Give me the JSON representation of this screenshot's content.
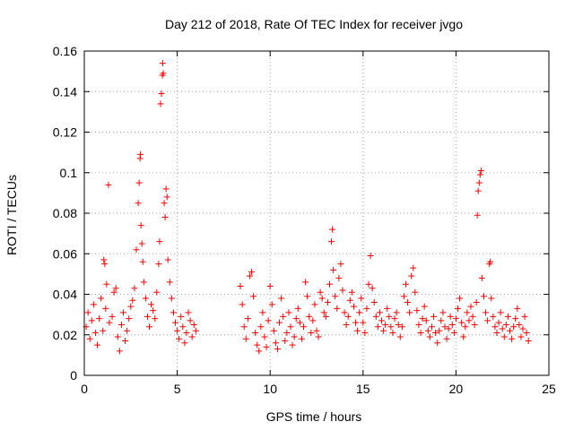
{
  "chart_data": {
    "type": "scatter",
    "title": "Day 212 of 2018, Rate Of TEC Index for receiver jvgo",
    "xlabel": "GPS time / hours",
    "ylabel": "ROTI / TECUs",
    "xlim": [
      0,
      25
    ],
    "ylim": [
      0,
      0.16
    ],
    "x_ticks": [
      0,
      5,
      10,
      15,
      20,
      25
    ],
    "x_tick_labels": [
      "0",
      "5",
      "10",
      "15",
      "20",
      "25"
    ],
    "y_ticks": [
      0,
      0.02,
      0.04,
      0.06,
      0.08,
      0.1,
      0.12,
      0.14,
      0.16
    ],
    "y_tick_labels": [
      "0",
      "0.02",
      "0.04",
      "0.06",
      "0.08",
      "0.1",
      "0.12",
      "0.14",
      "0.16"
    ],
    "grid": true,
    "marker": "+",
    "color": "#ff0000",
    "data_gap_hours": [
      6.0,
      8.3
    ],
    "series": [
      {
        "name": "ROTI",
        "points": [
          [
            0.1,
            0.024
          ],
          [
            0.2,
            0.031
          ],
          [
            0.3,
            0.018
          ],
          [
            0.4,
            0.027
          ],
          [
            0.5,
            0.035
          ],
          [
            0.6,
            0.021
          ],
          [
            0.7,
            0.015
          ],
          [
            0.8,
            0.028
          ],
          [
            0.9,
            0.038
          ],
          [
            1.0,
            0.022
          ],
          [
            1.05,
            0.057
          ],
          [
            1.1,
            0.055
          ],
          [
            1.15,
            0.033
          ],
          [
            1.2,
            0.045
          ],
          [
            1.3,
            0.094
          ],
          [
            1.35,
            0.026
          ],
          [
            1.5,
            0.029
          ],
          [
            1.6,
            0.041
          ],
          [
            1.7,
            0.043
          ],
          [
            1.8,
            0.019
          ],
          [
            1.9,
            0.012
          ],
          [
            2.0,
            0.025
          ],
          [
            2.1,
            0.031
          ],
          [
            2.2,
            0.017
          ],
          [
            2.3,
            0.022
          ],
          [
            2.4,
            0.028
          ],
          [
            2.5,
            0.034
          ],
          [
            2.6,
            0.037
          ],
          [
            2.7,
            0.043
          ],
          [
            2.8,
            0.062
          ],
          [
            2.9,
            0.085
          ],
          [
            2.95,
            0.095
          ],
          [
            3.0,
            0.107
          ],
          [
            3.02,
            0.109
          ],
          [
            3.05,
            0.074
          ],
          [
            3.1,
            0.065
          ],
          [
            3.15,
            0.056
          ],
          [
            3.2,
            0.046
          ],
          [
            3.3,
            0.038
          ],
          [
            3.4,
            0.029
          ],
          [
            3.5,
            0.024
          ],
          [
            3.6,
            0.035
          ],
          [
            3.7,
            0.032
          ],
          [
            3.8,
            0.028
          ],
          [
            3.9,
            0.041
          ],
          [
            4.0,
            0.055
          ],
          [
            4.05,
            0.066
          ],
          [
            4.1,
            0.134
          ],
          [
            4.15,
            0.139
          ],
          [
            4.2,
            0.148
          ],
          [
            4.22,
            0.154
          ],
          [
            4.25,
            0.149
          ],
          [
            4.3,
            0.085
          ],
          [
            4.35,
            0.078
          ],
          [
            4.4,
            0.092
          ],
          [
            4.45,
            0.088
          ],
          [
            4.5,
            0.057
          ],
          [
            4.6,
            0.046
          ],
          [
            4.7,
            0.038
          ],
          [
            4.8,
            0.031
          ],
          [
            4.9,
            0.026
          ],
          [
            5.0,
            0.022
          ],
          [
            5.1,
            0.018
          ],
          [
            5.2,
            0.029
          ],
          [
            5.3,
            0.024
          ],
          [
            5.4,
            0.016
          ],
          [
            5.5,
            0.021
          ],
          [
            5.6,
            0.031
          ],
          [
            5.7,
            0.027
          ],
          [
            5.8,
            0.019
          ],
          [
            5.9,
            0.025
          ],
          [
            6.0,
            0.022
          ],
          [
            8.4,
            0.044
          ],
          [
            8.5,
            0.035
          ],
          [
            8.6,
            0.024
          ],
          [
            8.7,
            0.018
          ],
          [
            8.8,
            0.028
          ],
          [
            8.9,
            0.049
          ],
          [
            9.0,
            0.051
          ],
          [
            9.1,
            0.039
          ],
          [
            9.2,
            0.021
          ],
          [
            9.3,
            0.015
          ],
          [
            9.4,
            0.012
          ],
          [
            9.5,
            0.024
          ],
          [
            9.6,
            0.031
          ],
          [
            9.7,
            0.019
          ],
          [
            9.8,
            0.014
          ],
          [
            9.9,
            0.027
          ],
          [
            10.0,
            0.044
          ],
          [
            10.1,
            0.035
          ],
          [
            10.2,
            0.022
          ],
          [
            10.3,
            0.016
          ],
          [
            10.4,
            0.013
          ],
          [
            10.5,
            0.026
          ],
          [
            10.6,
            0.038
          ],
          [
            10.7,
            0.029
          ],
          [
            10.8,
            0.017
          ],
          [
            10.9,
            0.021
          ],
          [
            11.0,
            0.031
          ],
          [
            11.1,
            0.024
          ],
          [
            11.2,
            0.015
          ],
          [
            11.3,
            0.019
          ],
          [
            11.4,
            0.028
          ],
          [
            11.5,
            0.033
          ],
          [
            11.6,
            0.026
          ],
          [
            11.7,
            0.018
          ],
          [
            11.8,
            0.024
          ],
          [
            11.9,
            0.046
          ],
          [
            12.0,
            0.039
          ],
          [
            12.1,
            0.029
          ],
          [
            12.2,
            0.021
          ],
          [
            12.3,
            0.027
          ],
          [
            12.4,
            0.035
          ],
          [
            12.5,
            0.022
          ],
          [
            12.6,
            0.019
          ],
          [
            12.7,
            0.041
          ],
          [
            12.8,
            0.038
          ],
          [
            12.9,
            0.031
          ],
          [
            13.0,
            0.029
          ],
          [
            13.1,
            0.036
          ],
          [
            13.2,
            0.045
          ],
          [
            13.3,
            0.066
          ],
          [
            13.35,
            0.072
          ],
          [
            13.4,
            0.052
          ],
          [
            13.5,
            0.039
          ],
          [
            13.6,
            0.033
          ],
          [
            13.7,
            0.048
          ],
          [
            13.8,
            0.055
          ],
          [
            13.9,
            0.042
          ],
          [
            14.0,
            0.031
          ],
          [
            14.1,
            0.025
          ],
          [
            14.2,
            0.029
          ],
          [
            14.3,
            0.037
          ],
          [
            14.4,
            0.041
          ],
          [
            14.5,
            0.034
          ],
          [
            14.6,
            0.026
          ],
          [
            14.7,
            0.022
          ],
          [
            14.8,
            0.031
          ],
          [
            14.9,
            0.038
          ],
          [
            15.0,
            0.026
          ],
          [
            15.1,
            0.021
          ],
          [
            15.2,
            0.033
          ],
          [
            15.3,
            0.045
          ],
          [
            15.4,
            0.059
          ],
          [
            15.5,
            0.043
          ],
          [
            15.6,
            0.036
          ],
          [
            15.7,
            0.029
          ],
          [
            15.8,
            0.024
          ],
          [
            15.9,
            0.031
          ],
          [
            16.0,
            0.027
          ],
          [
            16.1,
            0.022
          ],
          [
            16.2,
            0.025
          ],
          [
            16.3,
            0.033
          ],
          [
            16.4,
            0.029
          ],
          [
            16.5,
            0.024
          ],
          [
            16.6,
            0.021
          ],
          [
            16.7,
            0.028
          ],
          [
            16.8,
            0.031
          ],
          [
            16.9,
            0.025
          ],
          [
            17.0,
            0.019
          ],
          [
            17.1,
            0.024
          ],
          [
            17.2,
            0.039
          ],
          [
            17.3,
            0.045
          ],
          [
            17.4,
            0.036
          ],
          [
            17.5,
            0.031
          ],
          [
            17.6,
            0.049
          ],
          [
            17.7,
            0.053
          ],
          [
            17.8,
            0.041
          ],
          [
            17.9,
            0.032
          ],
          [
            18.0,
            0.025
          ],
          [
            18.1,
            0.021
          ],
          [
            18.2,
            0.028
          ],
          [
            18.3,
            0.034
          ],
          [
            18.4,
            0.027
          ],
          [
            18.5,
            0.022
          ],
          [
            18.6,
            0.019
          ],
          [
            18.7,
            0.024
          ],
          [
            18.8,
            0.029
          ],
          [
            18.9,
            0.021
          ],
          [
            19.0,
            0.016
          ],
          [
            19.1,
            0.022
          ],
          [
            19.2,
            0.027
          ],
          [
            19.3,
            0.031
          ],
          [
            19.4,
            0.024
          ],
          [
            19.5,
            0.018
          ],
          [
            19.6,
            0.023
          ],
          [
            19.7,
            0.029
          ],
          [
            19.8,
            0.025
          ],
          [
            19.9,
            0.021
          ],
          [
            20.0,
            0.028
          ],
          [
            20.1,
            0.033
          ],
          [
            20.2,
            0.038
          ],
          [
            20.3,
            0.026
          ],
          [
            20.4,
            0.019
          ],
          [
            20.5,
            0.024
          ],
          [
            20.6,
            0.031
          ],
          [
            20.7,
            0.027
          ],
          [
            20.8,
            0.034
          ],
          [
            20.9,
            0.029
          ],
          [
            21.0,
            0.025
          ],
          [
            21.1,
            0.036
          ],
          [
            21.15,
            0.079
          ],
          [
            21.2,
            0.091
          ],
          [
            21.25,
            0.095
          ],
          [
            21.3,
            0.099
          ],
          [
            21.35,
            0.101
          ],
          [
            21.4,
            0.048
          ],
          [
            21.5,
            0.039
          ],
          [
            21.6,
            0.031
          ],
          [
            21.7,
            0.027
          ],
          [
            21.8,
            0.055
          ],
          [
            21.85,
            0.056
          ],
          [
            21.9,
            0.038
          ],
          [
            22.0,
            0.029
          ],
          [
            22.1,
            0.024
          ],
          [
            22.2,
            0.021
          ],
          [
            22.3,
            0.026
          ],
          [
            22.4,
            0.031
          ],
          [
            22.5,
            0.023
          ],
          [
            22.6,
            0.019
          ],
          [
            22.7,
            0.025
          ],
          [
            22.8,
            0.029
          ],
          [
            22.9,
            0.022
          ],
          [
            23.0,
            0.018
          ],
          [
            23.1,
            0.024
          ],
          [
            23.2,
            0.028
          ],
          [
            23.3,
            0.033
          ],
          [
            23.4,
            0.025
          ],
          [
            23.5,
            0.019
          ],
          [
            23.6,
            0.023
          ],
          [
            23.7,
            0.029
          ],
          [
            23.8,
            0.021
          ],
          [
            23.9,
            0.017
          ]
        ]
      }
    ]
  }
}
